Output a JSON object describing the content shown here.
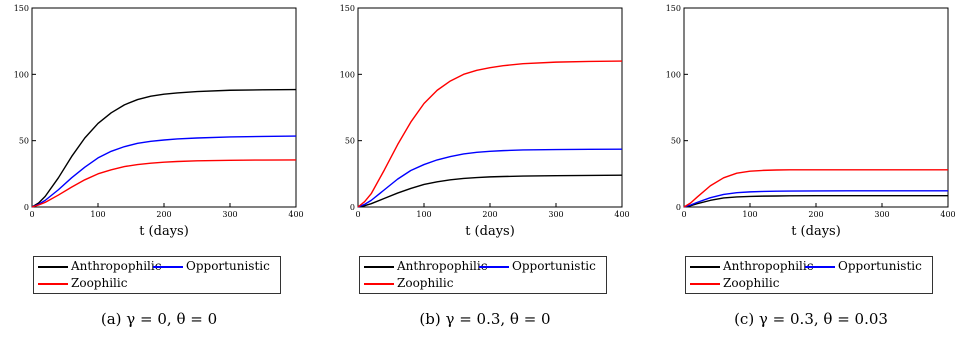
{
  "chart_data": [
    {
      "type": "line",
      "caption": "(a) γ = 0, θ = 0",
      "xlabel": "t (days)",
      "ylabel": "",
      "xlim": [
        0,
        400
      ],
      "ylim": [
        0,
        150
      ],
      "xticks": [
        0,
        100,
        200,
        300,
        400
      ],
      "yticks": [
        0,
        50,
        100,
        150
      ],
      "grid": false,
      "legend_position": "bottom",
      "series": [
        {
          "name": "Anthropophilic",
          "color": "#000000",
          "x": [
            0,
            10,
            20,
            40,
            60,
            80,
            100,
            120,
            140,
            160,
            180,
            200,
            220,
            250,
            300,
            350,
            400
          ],
          "y": [
            0,
            3,
            8,
            22,
            38,
            52,
            63,
            71,
            77,
            81,
            83.5,
            85,
            86,
            87,
            88,
            88.3,
            88.5
          ]
        },
        {
          "name": "Opportunistic",
          "color": "#0000ff",
          "x": [
            0,
            10,
            20,
            40,
            60,
            80,
            100,
            120,
            140,
            160,
            180,
            200,
            220,
            250,
            300,
            350,
            400
          ],
          "y": [
            0,
            2,
            5,
            13,
            22,
            30,
            37,
            42,
            45.5,
            48,
            49.5,
            50.5,
            51.3,
            52,
            52.8,
            53.2,
            53.5
          ]
        },
        {
          "name": "Zoophilic",
          "color": "#ff0000",
          "x": [
            0,
            10,
            20,
            40,
            60,
            80,
            100,
            120,
            140,
            160,
            180,
            200,
            220,
            250,
            300,
            350,
            400
          ],
          "y": [
            0,
            1.5,
            3.5,
            9,
            15,
            20.5,
            25,
            28,
            30.5,
            32,
            33,
            33.8,
            34.3,
            34.8,
            35.2,
            35.4,
            35.5
          ]
        }
      ]
    },
    {
      "type": "line",
      "caption": "(b) γ = 0.3, θ = 0",
      "xlabel": "t (days)",
      "ylabel": "",
      "xlim": [
        0,
        400
      ],
      "ylim": [
        0,
        150
      ],
      "xticks": [
        0,
        100,
        200,
        300,
        400
      ],
      "yticks": [
        0,
        50,
        100,
        150
      ],
      "grid": false,
      "legend_position": "bottom",
      "series": [
        {
          "name": "Anthropophilic",
          "color": "#000000",
          "x": [
            0,
            10,
            20,
            40,
            60,
            80,
            100,
            120,
            140,
            160,
            180,
            200,
            220,
            250,
            300,
            350,
            400
          ],
          "y": [
            0,
            1,
            2.5,
            6.5,
            10.5,
            14,
            17,
            19,
            20.5,
            21.5,
            22.2,
            22.7,
            23,
            23.3,
            23.6,
            23.8,
            24
          ]
        },
        {
          "name": "Opportunistic",
          "color": "#0000ff",
          "x": [
            0,
            10,
            20,
            40,
            60,
            80,
            100,
            120,
            140,
            160,
            180,
            200,
            220,
            250,
            300,
            350,
            400
          ],
          "y": [
            0,
            2,
            5,
            13,
            21,
            27.5,
            32,
            35.5,
            38,
            40,
            41.2,
            42,
            42.5,
            43,
            43.3,
            43.5,
            43.6
          ]
        },
        {
          "name": "Zoophilic",
          "color": "#ff0000",
          "x": [
            0,
            10,
            20,
            40,
            60,
            80,
            100,
            120,
            140,
            160,
            180,
            200,
            220,
            250,
            300,
            350,
            400
          ],
          "y": [
            0,
            4,
            10,
            28,
            47,
            64,
            78,
            88,
            95,
            100,
            103,
            105,
            106.5,
            108,
            109.2,
            109.7,
            110
          ]
        }
      ]
    },
    {
      "type": "line",
      "caption": "(c) γ = 0.3, θ = 0.03",
      "xlabel": "t (days)",
      "ylabel": "",
      "xlim": [
        0,
        400
      ],
      "ylim": [
        0,
        150
      ],
      "xticks": [
        0,
        100,
        200,
        300,
        400
      ],
      "yticks": [
        0,
        50,
        100,
        150
      ],
      "grid": false,
      "legend_position": "bottom",
      "series": [
        {
          "name": "Anthropophilic",
          "color": "#000000",
          "x": [
            0,
            10,
            20,
            40,
            60,
            80,
            100,
            120,
            140,
            160,
            200,
            250,
            300,
            350,
            400
          ],
          "y": [
            0,
            1,
            2.5,
            5,
            6.8,
            7.6,
            8,
            8.2,
            8.3,
            8.4,
            8.5,
            8.5,
            8.5,
            8.5,
            8.5
          ]
        },
        {
          "name": "Opportunistic",
          "color": "#0000ff",
          "x": [
            0,
            10,
            20,
            40,
            60,
            80,
            100,
            120,
            140,
            160,
            200,
            250,
            300,
            350,
            400
          ],
          "y": [
            0,
            1.5,
            3.5,
            7,
            9.5,
            10.8,
            11.4,
            11.7,
            11.9,
            12,
            12.1,
            12.2,
            12.2,
            12.2,
            12.2
          ]
        },
        {
          "name": "Zoophilic",
          "color": "#ff0000",
          "x": [
            0,
            10,
            20,
            40,
            60,
            80,
            100,
            120,
            140,
            160,
            200,
            250,
            300,
            350,
            400
          ],
          "y": [
            0,
            3,
            7.5,
            16,
            22,
            25.5,
            27,
            27.6,
            27.9,
            28,
            28,
            28,
            28,
            28,
            28
          ]
        }
      ]
    }
  ]
}
